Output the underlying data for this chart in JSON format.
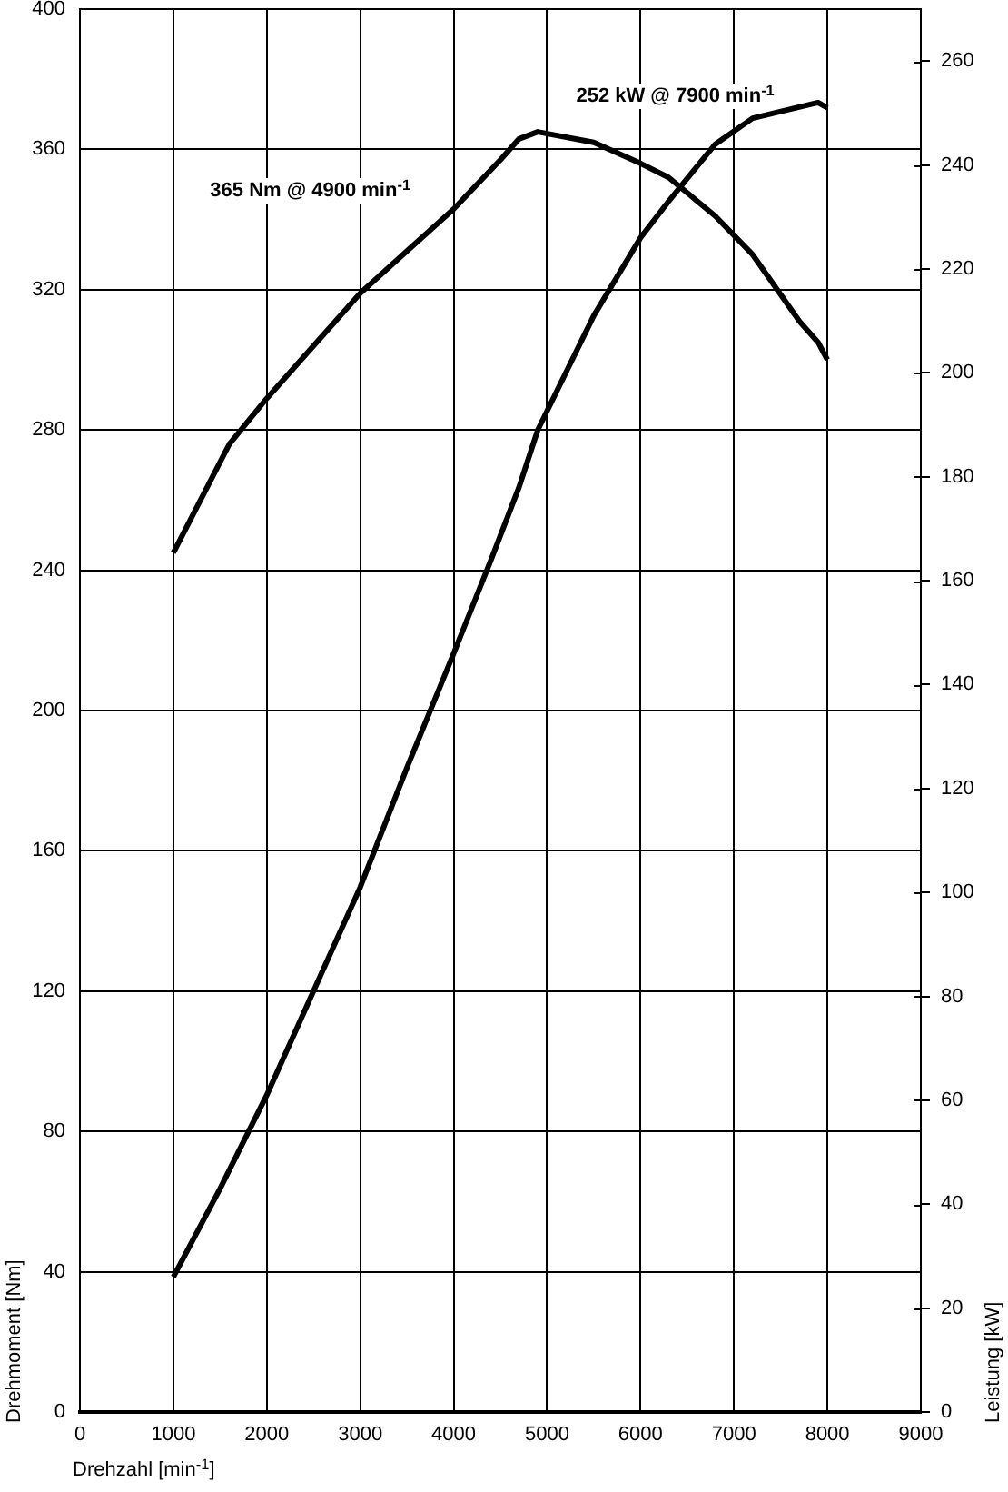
{
  "chart_data": {
    "type": "line",
    "xlabel": "Drehzahl [min$^{-1}$]",
    "ylabel": "Drehmoment [Nm]",
    "y2label": "Leistung [kW]",
    "annotations": [
      "365 Nm @ 4900 min$^{-1}$",
      "252 kW @ 7900 min$^{-1}$"
    ],
    "xlim": [
      0,
      9000
    ],
    "xticks": [
      0,
      1000,
      2000,
      3000,
      4000,
      5000,
      6000,
      7000,
      8000,
      9000
    ],
    "ylim": [
      0,
      400
    ],
    "yticks": [
      0,
      40,
      80,
      120,
      160,
      200,
      240,
      280,
      320,
      360,
      400
    ],
    "y2lim": [
      0,
      270
    ],
    "y2ticks": [
      0,
      20,
      40,
      60,
      80,
      100,
      120,
      140,
      160,
      180,
      200,
      220,
      240,
      260
    ],
    "grid": true,
    "legend": false,
    "series": [
      {
        "color": "#000000",
        "x": [
          1000,
          1600,
          2000,
          2700,
          3000,
          3500,
          4000,
          4500,
          4700,
          4900,
          5500,
          6000,
          6300,
          6800,
          7200,
          7700,
          7900,
          8000
        ],
        "values": [
          245,
          276,
          289,
          310,
          319,
          331,
          343,
          357,
          363,
          365,
          362,
          356,
          352,
          341,
          330,
          311,
          305,
          300
        ]
      },
      {
        "color": "#000000",
        "axis": "y2",
        "x": [
          1000,
          1500,
          2000,
          2500,
          3000,
          3500,
          4000,
          4400,
          4700,
          4900,
          5500,
          6000,
          6300,
          6800,
          7200,
          7900,
          8000
        ],
        "values": [
          26,
          43,
          61,
          81,
          101,
          124,
          146,
          164,
          178,
          189,
          211,
          226,
          233,
          244,
          249,
          252,
          251
        ]
      }
    ]
  }
}
